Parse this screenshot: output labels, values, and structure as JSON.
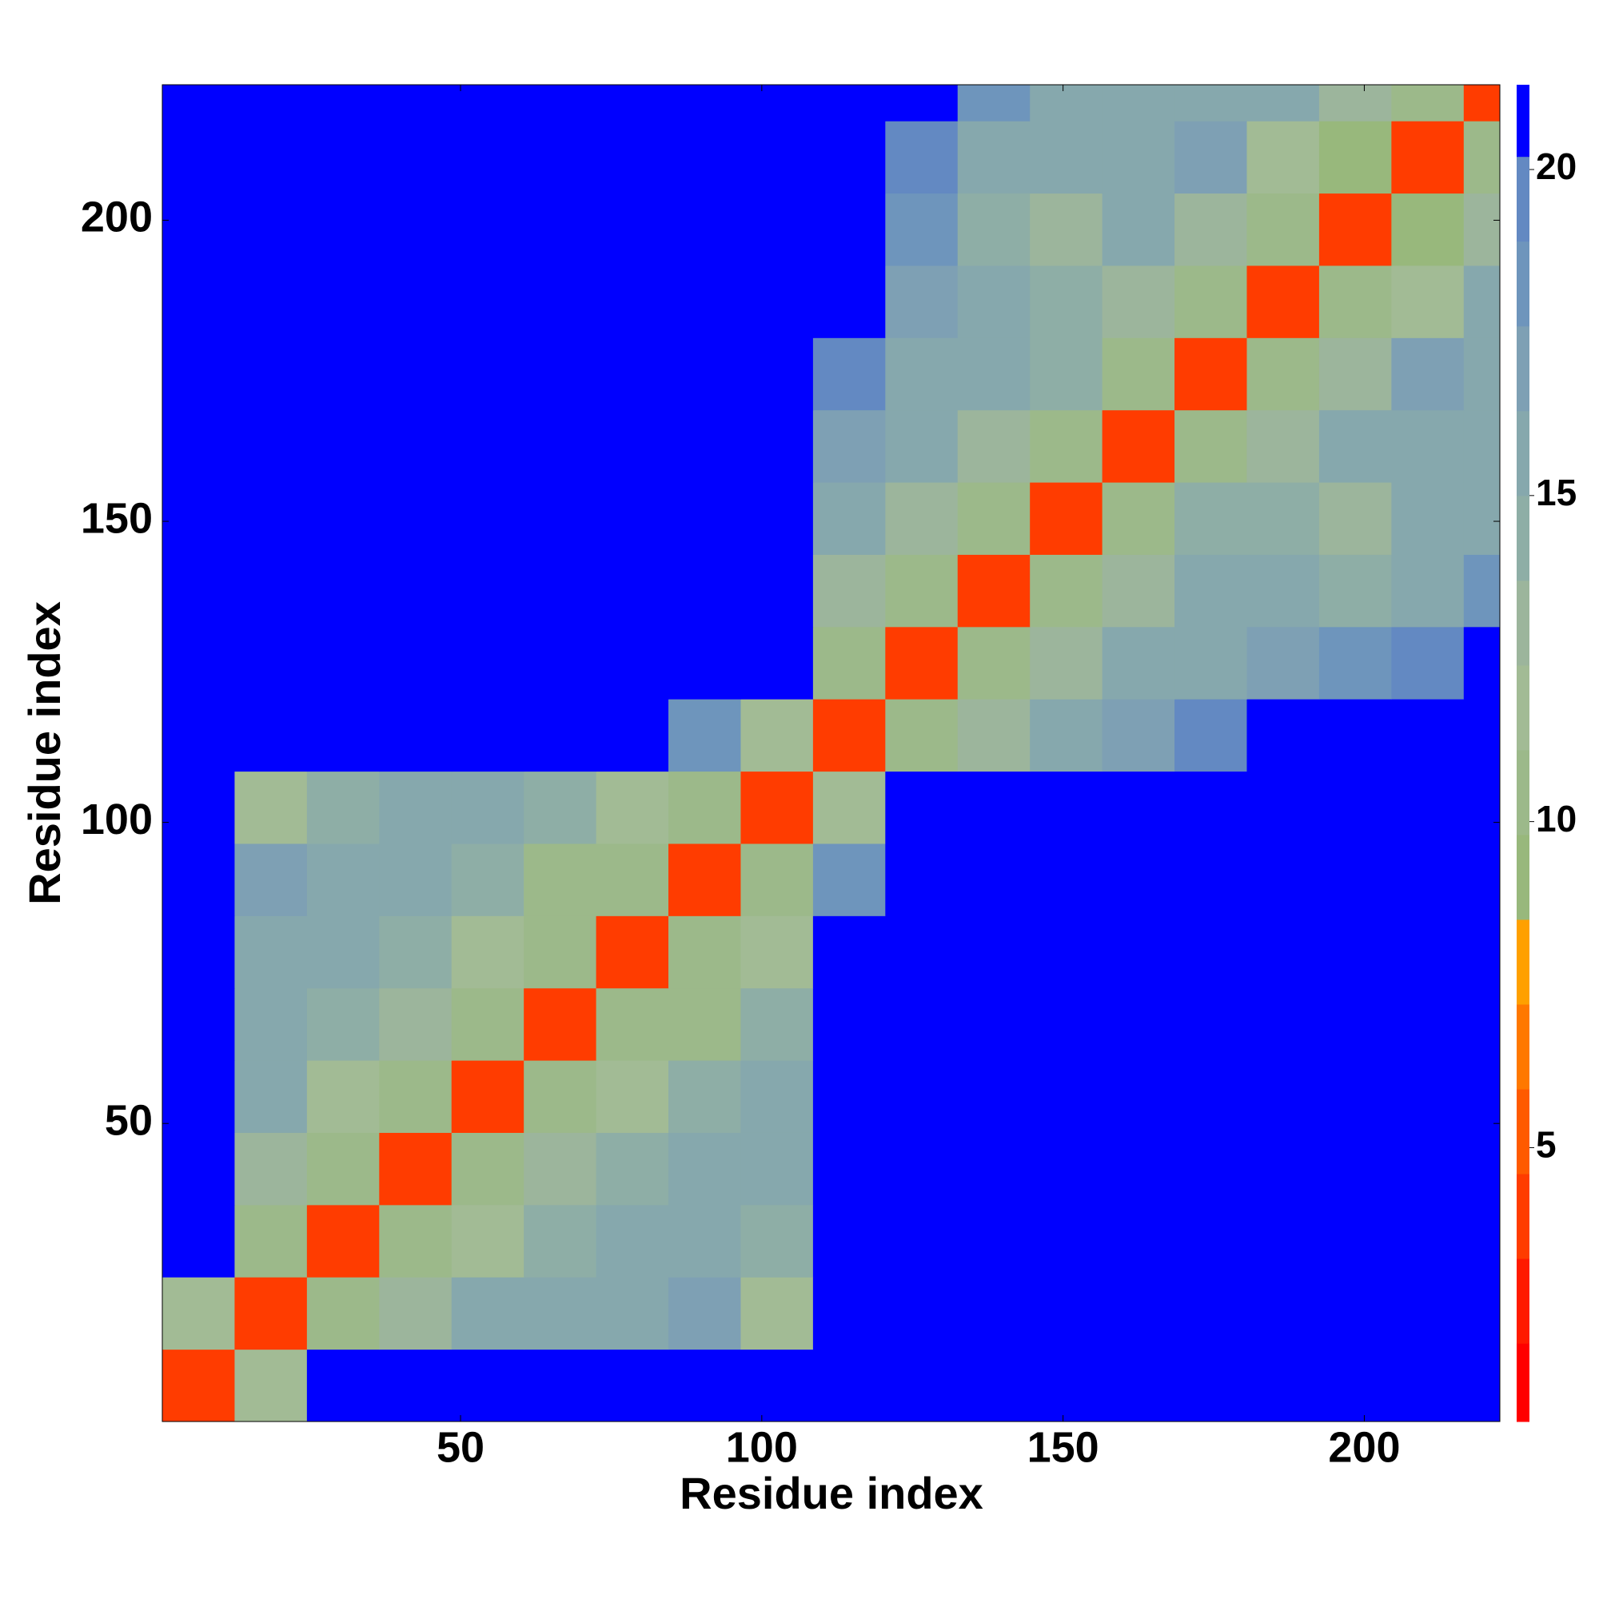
{
  "chart_data": {
    "type": "heatmap",
    "xlabel": "Residue index",
    "ylabel": "Residue index",
    "bins": [
      0.5,
      12.5,
      24.5,
      36.5,
      48.5,
      60.5,
      72.5,
      84.5,
      96.5,
      108.5,
      120.5,
      132.5,
      144.5,
      156.5,
      168.5,
      180.5,
      192.5,
      204.5,
      216.5,
      222.5
    ],
    "values": [
      [
        4,
        12,
        21,
        21,
        21,
        21,
        21,
        21,
        21,
        21,
        21,
        21,
        21,
        21,
        21,
        21,
        21,
        21,
        21
      ],
      [
        12,
        4,
        11,
        13,
        15,
        16,
        16,
        17,
        12,
        21,
        21,
        21,
        21,
        21,
        21,
        21,
        21,
        21,
        21
      ],
      [
        21,
        11,
        4,
        10,
        12,
        14,
        15,
        16,
        14,
        21,
        21,
        21,
        21,
        21,
        21,
        21,
        21,
        21,
        21
      ],
      [
        21,
        13,
        10,
        4,
        10,
        13,
        14,
        15,
        16,
        21,
        21,
        21,
        21,
        21,
        21,
        21,
        21,
        21,
        21
      ],
      [
        21,
        15,
        12,
        10,
        4,
        10,
        12,
        14,
        16,
        21,
        21,
        21,
        21,
        21,
        21,
        21,
        21,
        21,
        21
      ],
      [
        21,
        16,
        14,
        13,
        10,
        4,
        10,
        11,
        14,
        21,
        21,
        21,
        21,
        21,
        21,
        21,
        21,
        21,
        21
      ],
      [
        21,
        16,
        15,
        14,
        12,
        10,
        4,
        10,
        12,
        21,
        21,
        21,
        21,
        21,
        21,
        21,
        21,
        21,
        21
      ],
      [
        21,
        17,
        16,
        15,
        14,
        11,
        10,
        4,
        10,
        18,
        21,
        21,
        21,
        21,
        21,
        21,
        21,
        21,
        21
      ],
      [
        21,
        12,
        14,
        16,
        16,
        14,
        12,
        10,
        4,
        12,
        21,
        21,
        21,
        21,
        21,
        21,
        21,
        21,
        21
      ],
      [
        21,
        21,
        21,
        21,
        21,
        21,
        21,
        18,
        12,
        4,
        10,
        13,
        16,
        17,
        19,
        21,
        21,
        21,
        21
      ],
      [
        21,
        21,
        21,
        21,
        21,
        21,
        21,
        21,
        21,
        10,
        4,
        10,
        13,
        15,
        16,
        17,
        18,
        19,
        21
      ],
      [
        21,
        21,
        21,
        21,
        21,
        21,
        21,
        21,
        21,
        13,
        10,
        4,
        10,
        13,
        15,
        15,
        14,
        16,
        18
      ],
      [
        21,
        21,
        21,
        21,
        21,
        21,
        21,
        21,
        21,
        16,
        13,
        10,
        4,
        10,
        14,
        14,
        13,
        15,
        16
      ],
      [
        21,
        21,
        21,
        21,
        21,
        21,
        21,
        21,
        21,
        17,
        15,
        13,
        10,
        4,
        10,
        13,
        15,
        15,
        16
      ],
      [
        21,
        21,
        21,
        21,
        21,
        21,
        21,
        21,
        21,
        19,
        16,
        15,
        14,
        10,
        4,
        10,
        13,
        17,
        15
      ],
      [
        21,
        21,
        21,
        21,
        21,
        21,
        21,
        21,
        21,
        21,
        17,
        15,
        14,
        13,
        10,
        4,
        10,
        12,
        16
      ],
      [
        21,
        21,
        21,
        21,
        21,
        21,
        21,
        21,
        21,
        21,
        18,
        14,
        13,
        15,
        13,
        10,
        4,
        9,
        13
      ],
      [
        21,
        21,
        21,
        21,
        21,
        21,
        21,
        21,
        21,
        21,
        19,
        16,
        15,
        15,
        17,
        12,
        9,
        4,
        10
      ],
      [
        21,
        21,
        21,
        21,
        21,
        21,
        21,
        21,
        21,
        21,
        21,
        18,
        16,
        16,
        15,
        16,
        13,
        10,
        4
      ]
    ],
    "xlim": [
      0.5,
      222.5
    ],
    "ylim": [
      0.5,
      222.5
    ],
    "xticks": [
      50,
      100,
      150,
      200
    ],
    "yticks": [
      50,
      100,
      150,
      200
    ],
    "colorbar_bounds": [
      0.8,
      2,
      3.3,
      4.6,
      5.9,
      7.2,
      8.5,
      9.8,
      11.1,
      12.4,
      13.7,
      15,
      16.3,
      17.6,
      18.9,
      20.2,
      21.3
    ],
    "colors": [
      "#ff0000",
      "#ff1a00",
      "#ff3c00",
      "#ff5a00",
      "#ff7800",
      "#ffa000",
      "#98b87c",
      "#9cb98a",
      "#a2bb95",
      "#9cb59c",
      "#8eaea6",
      "#86a8ad",
      "#7ea0b4",
      "#6e95bc",
      "#6389c2",
      "#0000ff"
    ],
    "colorbar_ticks": [
      5,
      10,
      15,
      20
    ]
  }
}
